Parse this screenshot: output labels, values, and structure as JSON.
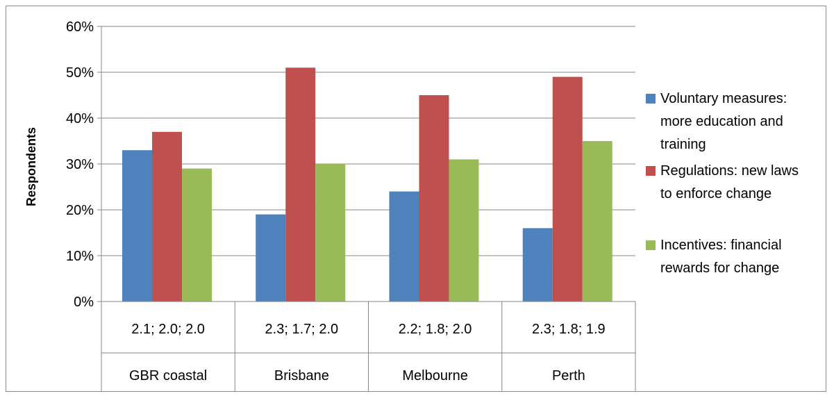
{
  "chart_data": {
    "type": "bar",
    "title": "",
    "ylabel": "Respondents",
    "xlabel": "",
    "ylim": [
      0,
      60
    ],
    "y_ticks": [
      "0%",
      "10%",
      "20%",
      "30%",
      "40%",
      "50%",
      "60%"
    ],
    "y_tick_values": [
      0,
      10,
      20,
      30,
      40,
      50,
      60
    ],
    "grid": true,
    "legend_position": "right",
    "categories": [
      "GBR coastal",
      "Brisbane",
      "Melbourne",
      "Perth"
    ],
    "sublabels": [
      "2.1; 2.0; 2.0",
      "2.3; 1.7; 2.0",
      "2.2; 1.8; 2.0",
      "2.3; 1.8; 1.9"
    ],
    "series": [
      {
        "name": "Voluntary measures: more education and training",
        "legend_lines": [
          "Voluntary measures:",
          "more education and",
          "training"
        ],
        "color": "#4f81bd",
        "values": [
          33,
          19,
          24,
          16
        ]
      },
      {
        "name": "Regulations: new laws to enforce change",
        "legend_lines": [
          "Regulations: new laws",
          "to enforce change"
        ],
        "color": "#c0504d",
        "values": [
          37,
          51,
          45,
          49
        ]
      },
      {
        "name": "Incentives: financial rewards for change",
        "legend_lines": [
          "Incentives: financial",
          "rewards for change"
        ],
        "color": "#9bbb59",
        "values": [
          29,
          30,
          31,
          35
        ]
      }
    ]
  }
}
